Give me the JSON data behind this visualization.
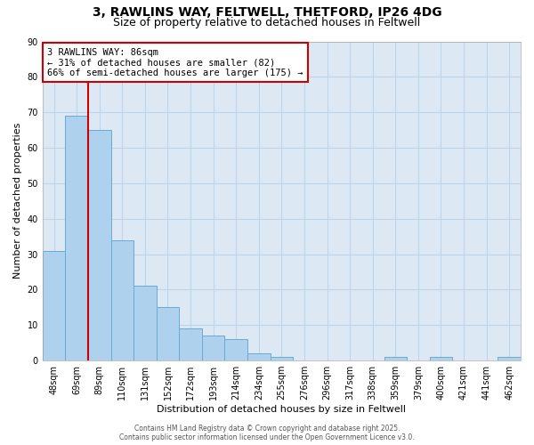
{
  "title_line1": "3, RAWLINS WAY, FELTWELL, THETFORD, IP26 4DG",
  "title_line2": "Size of property relative to detached houses in Feltwell",
  "xlabel": "Distribution of detached houses by size in Feltwell",
  "ylabel": "Number of detached properties",
  "categories": [
    "48sqm",
    "69sqm",
    "89sqm",
    "110sqm",
    "131sqm",
    "152sqm",
    "172sqm",
    "193sqm",
    "214sqm",
    "234sqm",
    "255sqm",
    "276sqm",
    "296sqm",
    "317sqm",
    "338sqm",
    "359sqm",
    "379sqm",
    "400sqm",
    "421sqm",
    "441sqm",
    "462sqm"
  ],
  "values": [
    31,
    69,
    65,
    34,
    21,
    15,
    9,
    7,
    6,
    2,
    1,
    0,
    0,
    0,
    0,
    1,
    0,
    1,
    0,
    0,
    1
  ],
  "bar_color": "#aed1ed",
  "bar_edge_color": "#6aaad4",
  "red_line_x": 1.5,
  "red_line_color": "#cc0000",
  "annotation_text": "3 RAWLINS WAY: 86sqm\n← 31% of detached houses are smaller (82)\n66% of semi-detached houses are larger (175) →",
  "annotation_box_color": "#cc0000",
  "ylim": [
    0,
    90
  ],
  "yticks": [
    0,
    10,
    20,
    30,
    40,
    50,
    60,
    70,
    80,
    90
  ],
  "grid_color": "#c0d4e8",
  "background_color": "#dce9f5",
  "footer_text": "Contains HM Land Registry data © Crown copyright and database right 2025.\nContains public sector information licensed under the Open Government Licence v3.0.",
  "title_fontsize": 10,
  "subtitle_fontsize": 9,
  "axis_label_fontsize": 8,
  "tick_fontsize": 7,
  "annotation_fontsize": 7.5
}
